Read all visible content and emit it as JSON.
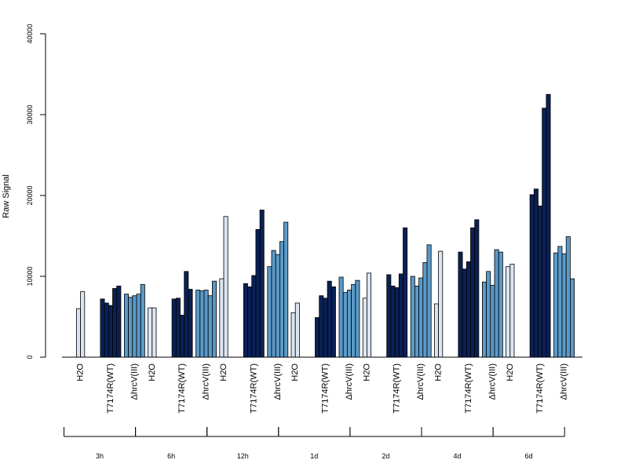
{
  "chart_data": {
    "type": "bar",
    "ylabel": "Raw Signal",
    "xlabel": "",
    "ylim": [
      0,
      40000
    ],
    "yticks": [
      0,
      10000,
      20000,
      30000,
      40000
    ],
    "grid": false,
    "legend": "none",
    "timepoints": [
      "3h",
      "6h",
      "12h",
      "1d",
      "2d",
      "4d",
      "6d"
    ],
    "treatments": [
      "H2O",
      "T7174R(WT)",
      "ΔhrcV(III)"
    ],
    "colors": {
      "H2O": "#dce6f2",
      "T7174R(WT)": "#0a2156",
      "ΔhrcV(III)": "#5a9ac8"
    },
    "groups": [
      {
        "timepoint": "3h",
        "treatment": "H2O",
        "values": [
          6000,
          8100
        ]
      },
      {
        "timepoint": "3h",
        "treatment": "T7174R(WT)",
        "values": [
          7200,
          6700,
          6400,
          8500,
          8800
        ]
      },
      {
        "timepoint": "3h",
        "treatment": "ΔhrcV(III)",
        "values": [
          7800,
          7400,
          7600,
          7800,
          9000
        ]
      },
      {
        "timepoint": "6h",
        "treatment": "H2O",
        "values": [
          6100,
          6100
        ]
      },
      {
        "timepoint": "6h",
        "treatment": "T7174R(WT)",
        "values": [
          7200,
          7300,
          5200,
          10600,
          8400
        ]
      },
      {
        "timepoint": "6h",
        "treatment": "ΔhrcV(III)",
        "values": [
          8300,
          8200,
          8300,
          7600,
          9400
        ]
      },
      {
        "timepoint": "12h",
        "treatment": "H2O",
        "values": [
          9700,
          17400
        ]
      },
      {
        "timepoint": "12h",
        "treatment": "T7174R(WT)",
        "values": [
          9100,
          8700,
          10100,
          15800,
          18200
        ]
      },
      {
        "timepoint": "12h",
        "treatment": "ΔhrcV(III)",
        "values": [
          11200,
          13200,
          12700,
          14300,
          16700
        ]
      },
      {
        "timepoint": "1d",
        "treatment": "H2O",
        "values": [
          5500,
          6700
        ]
      },
      {
        "timepoint": "1d",
        "treatment": "T7174R(WT)",
        "values": [
          4900,
          7600,
          7300,
          9400,
          8700
        ]
      },
      {
        "timepoint": "1d",
        "treatment": "ΔhrcV(III)",
        "values": [
          9900,
          8000,
          8300,
          9000,
          9500
        ]
      },
      {
        "timepoint": "2d",
        "treatment": "H2O",
        "values": [
          7300,
          10400
        ]
      },
      {
        "timepoint": "2d",
        "treatment": "T7174R(WT)",
        "values": [
          10200,
          8800,
          8600,
          10300,
          16000
        ]
      },
      {
        "timepoint": "2d",
        "treatment": "ΔhrcV(III)",
        "values": [
          10000,
          8800,
          9800,
          11700,
          13900
        ]
      },
      {
        "timepoint": "4d",
        "treatment": "H2O",
        "values": [
          6600,
          13100
        ]
      },
      {
        "timepoint": "4d",
        "treatment": "T7174R(WT)",
        "values": [
          13000,
          10900,
          11800,
          16000,
          17000
        ]
      },
      {
        "timepoint": "4d",
        "treatment": "ΔhrcV(III)",
        "values": [
          9300,
          10600,
          8900,
          13300,
          13000
        ]
      },
      {
        "timepoint": "6d",
        "treatment": "H2O",
        "values": [
          11200,
          11500
        ]
      },
      {
        "timepoint": "6d",
        "treatment": "T7174R(WT)",
        "values": [
          20100,
          20800,
          18700,
          30800,
          32500
        ]
      },
      {
        "timepoint": "6d",
        "treatment": "ΔhrcV(III)",
        "values": [
          12900,
          13700,
          12800,
          14900,
          9700
        ]
      }
    ]
  }
}
